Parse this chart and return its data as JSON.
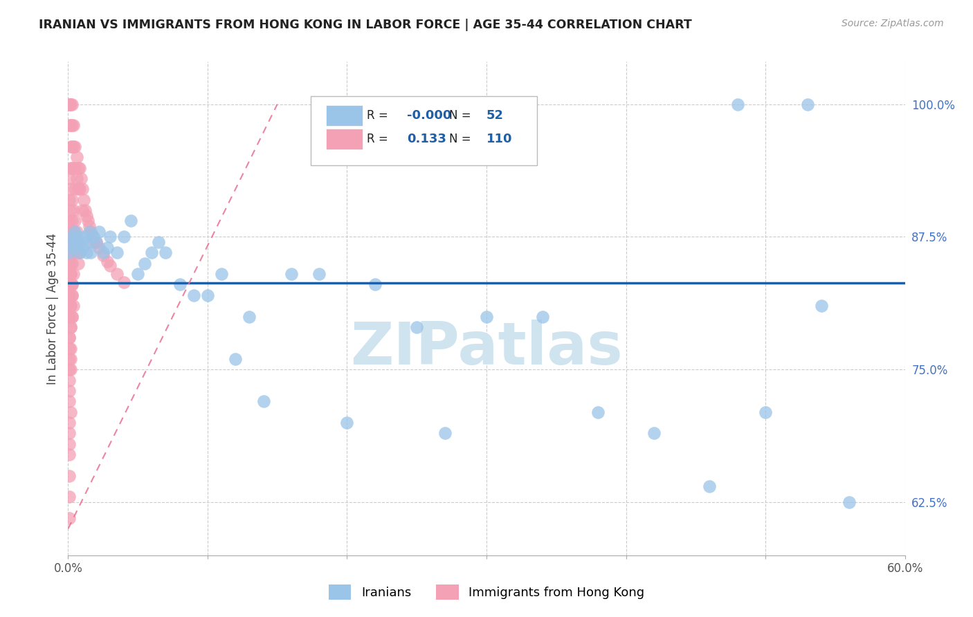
{
  "title": "IRANIAN VS IMMIGRANTS FROM HONG KONG IN LABOR FORCE | AGE 35-44 CORRELATION CHART",
  "source": "Source: ZipAtlas.com",
  "ylabel": "In Labor Force | Age 35-44",
  "xlim": [
    0.0,
    0.6
  ],
  "ylim": [
    0.575,
    1.04
  ],
  "xticks": [
    0.0,
    0.1,
    0.2,
    0.3,
    0.4,
    0.5,
    0.6
  ],
  "xticklabels": [
    "0.0%",
    "",
    "",
    "",
    "",
    "",
    "60.0%"
  ],
  "yticks": [
    0.625,
    0.75,
    0.875,
    1.0
  ],
  "yticklabels": [
    "62.5%",
    "75.0%",
    "87.5%",
    "100.0%"
  ],
  "blue_color": "#9ac4e8",
  "pink_color": "#f4a0b5",
  "trend_blue_color": "#1f5fa6",
  "trend_pink_color": "#e87090",
  "legend_R_blue": "-0.000",
  "legend_N_blue": "52",
  "legend_R_pink": "0.133",
  "legend_N_pink": "110",
  "watermark": "ZIPatlas",
  "watermark_color": "#d0e4f0",
  "blue_scatter_x": [
    0.001,
    0.002,
    0.003,
    0.004,
    0.005,
    0.006,
    0.007,
    0.008,
    0.009,
    0.01,
    0.012,
    0.013,
    0.014,
    0.015,
    0.016,
    0.018,
    0.02,
    0.022,
    0.025,
    0.028,
    0.03,
    0.035,
    0.04,
    0.045,
    0.05,
    0.055,
    0.06,
    0.065,
    0.07,
    0.08,
    0.09,
    0.1,
    0.11,
    0.12,
    0.13,
    0.14,
    0.16,
    0.18,
    0.2,
    0.22,
    0.25,
    0.27,
    0.3,
    0.34,
    0.38,
    0.42,
    0.46,
    0.5,
    0.54,
    0.48,
    0.53,
    0.56
  ],
  "blue_scatter_y": [
    0.86,
    0.87,
    0.875,
    0.865,
    0.88,
    0.87,
    0.875,
    0.86,
    0.87,
    0.865,
    0.875,
    0.86,
    0.87,
    0.88,
    0.86,
    0.875,
    0.87,
    0.88,
    0.86,
    0.865,
    0.875,
    0.86,
    0.875,
    0.89,
    0.84,
    0.85,
    0.86,
    0.87,
    0.86,
    0.83,
    0.82,
    0.82,
    0.84,
    0.76,
    0.8,
    0.72,
    0.84,
    0.84,
    0.7,
    0.83,
    0.79,
    0.69,
    0.8,
    0.8,
    0.71,
    0.69,
    0.64,
    0.71,
    0.81,
    1.0,
    1.0,
    0.625
  ],
  "pink_scatter_x": [
    0.001,
    0.001,
    0.001,
    0.001,
    0.002,
    0.002,
    0.002,
    0.002,
    0.003,
    0.003,
    0.003,
    0.003,
    0.004,
    0.004,
    0.004,
    0.005,
    0.005,
    0.005,
    0.006,
    0.006,
    0.007,
    0.007,
    0.008,
    0.008,
    0.009,
    0.01,
    0.01,
    0.011,
    0.012,
    0.013,
    0.014,
    0.015,
    0.016,
    0.017,
    0.018,
    0.02,
    0.022,
    0.025,
    0.028,
    0.03,
    0.035,
    0.04,
    0.001,
    0.001,
    0.001,
    0.002,
    0.002,
    0.002,
    0.003,
    0.003,
    0.003,
    0.004,
    0.004,
    0.005,
    0.005,
    0.006,
    0.006,
    0.007,
    0.007,
    0.008,
    0.001,
    0.001,
    0.002,
    0.002,
    0.002,
    0.003,
    0.003,
    0.003,
    0.004,
    0.004,
    0.001,
    0.001,
    0.001,
    0.002,
    0.002,
    0.002,
    0.002,
    0.003,
    0.003,
    0.003,
    0.001,
    0.001,
    0.001,
    0.001,
    0.002,
    0.002,
    0.002,
    0.003,
    0.003,
    0.004,
    0.001,
    0.001,
    0.001,
    0.002,
    0.002,
    0.002,
    0.001,
    0.001,
    0.001,
    0.002,
    0.001,
    0.001,
    0.001,
    0.001,
    0.002,
    0.001,
    0.001,
    0.001,
    0.001,
    0.001
  ],
  "pink_scatter_y": [
    1.0,
    1.0,
    1.0,
    0.98,
    1.0,
    0.98,
    0.96,
    0.94,
    1.0,
    0.98,
    0.96,
    0.94,
    0.98,
    0.96,
    0.94,
    0.96,
    0.94,
    0.92,
    0.95,
    0.93,
    0.94,
    0.92,
    0.94,
    0.92,
    0.93,
    0.92,
    0.9,
    0.91,
    0.9,
    0.895,
    0.89,
    0.885,
    0.88,
    0.875,
    0.87,
    0.87,
    0.865,
    0.858,
    0.852,
    0.848,
    0.84,
    0.832,
    0.93,
    0.91,
    0.89,
    0.92,
    0.9,
    0.88,
    0.91,
    0.89,
    0.87,
    0.9,
    0.88,
    0.89,
    0.87,
    0.88,
    0.86,
    0.87,
    0.85,
    0.86,
    0.87,
    0.85,
    0.88,
    0.86,
    0.84,
    0.87,
    0.85,
    0.83,
    0.86,
    0.84,
    0.86,
    0.84,
    0.82,
    0.85,
    0.83,
    0.81,
    0.84,
    0.82,
    0.8,
    0.83,
    0.84,
    0.82,
    0.8,
    0.78,
    0.83,
    0.81,
    0.79,
    0.82,
    0.8,
    0.81,
    0.8,
    0.78,
    0.76,
    0.79,
    0.77,
    0.75,
    0.77,
    0.75,
    0.73,
    0.76,
    0.74,
    0.72,
    0.7,
    0.68,
    0.71,
    0.69,
    0.67,
    0.65,
    0.63,
    0.61
  ]
}
